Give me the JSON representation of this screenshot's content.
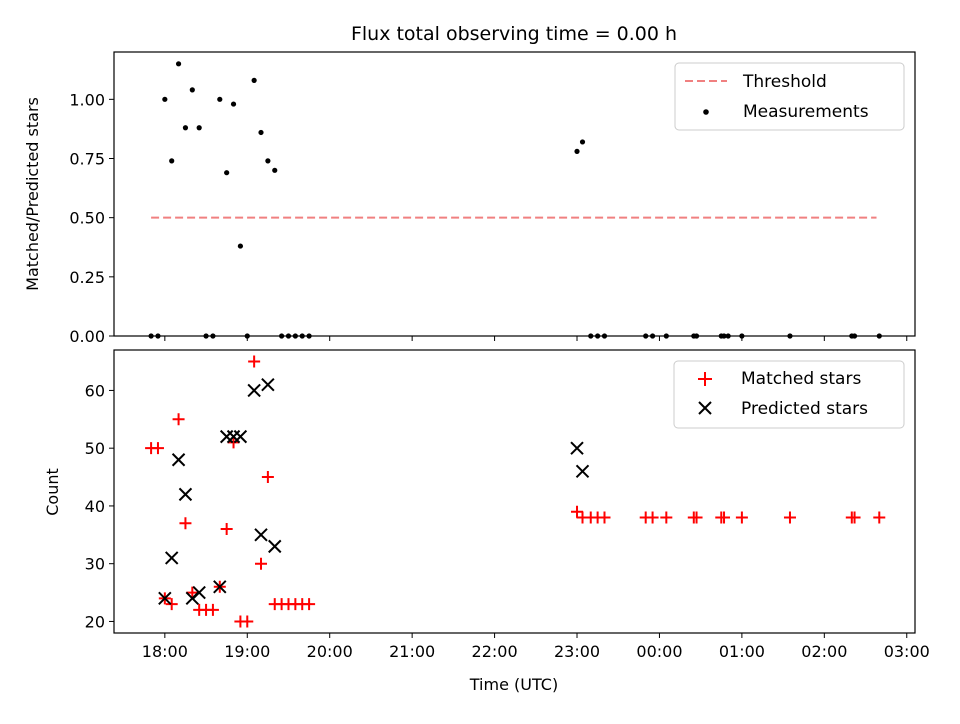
{
  "chart_data": [
    {
      "type": "scatter",
      "title": "Flux total observing time = 0.00 h",
      "xlabel": "",
      "ylabel": "Matched/Predicted stars",
      "xlim": [
        "17:23",
        "03:06"
      ],
      "ylim": [
        0,
        1.2
      ],
      "yticks": [
        "0.00",
        "0.25",
        "0.50",
        "0.75",
        "1.00"
      ],
      "legend": {
        "placement": "top-right",
        "entries": [
          "Threshold",
          "Measurements"
        ]
      },
      "threshold": {
        "name": "Threshold",
        "value": 0.5,
        "x_start": "17:50",
        "x_end": "02:38",
        "color": "#f08080",
        "style": "dashed"
      },
      "series": [
        {
          "name": "Measurements",
          "color": "#000000",
          "marker": "dot",
          "points": [
            [
              "17:50",
              0.0
            ],
            [
              "17:55",
              0.0
            ],
            [
              "18:00",
              1.0
            ],
            [
              "18:05",
              0.74
            ],
            [
              "18:10",
              1.15
            ],
            [
              "18:15",
              0.88
            ],
            [
              "18:20",
              1.04
            ],
            [
              "18:25",
              0.88
            ],
            [
              "18:30",
              0.0
            ],
            [
              "18:35",
              0.0
            ],
            [
              "18:40",
              1.0
            ],
            [
              "18:45",
              0.69
            ],
            [
              "18:50",
              0.98
            ],
            [
              "18:55",
              0.38
            ],
            [
              "19:00",
              0.0
            ],
            [
              "19:05",
              1.08
            ],
            [
              "19:10",
              0.86
            ],
            [
              "19:15",
              0.74
            ],
            [
              "19:20",
              0.7
            ],
            [
              "19:25",
              0.0
            ],
            [
              "19:30",
              0.0
            ],
            [
              "19:35",
              0.0
            ],
            [
              "19:40",
              0.0
            ],
            [
              "19:45",
              0.0
            ],
            [
              "23:00",
              0.78
            ],
            [
              "23:04",
              0.82
            ],
            [
              "23:10",
              0.0
            ],
            [
              "23:15",
              0.0
            ],
            [
              "23:20",
              0.0
            ],
            [
              "23:50",
              0.0
            ],
            [
              "23:55",
              0.0
            ],
            [
              "00:05",
              0.0
            ],
            [
              "00:25",
              0.0
            ],
            [
              "00:27",
              0.0
            ],
            [
              "00:45",
              0.0
            ],
            [
              "00:47",
              0.0
            ],
            [
              "00:50",
              0.0
            ],
            [
              "01:00",
              0.0
            ],
            [
              "01:35",
              0.0
            ],
            [
              "02:20",
              0.0
            ],
            [
              "02:22",
              0.0
            ],
            [
              "02:40",
              0.0
            ]
          ]
        }
      ]
    },
    {
      "type": "scatter",
      "title": "",
      "xlabel": "Time (UTC)",
      "ylabel": "Count",
      "xlim": [
        "17:23",
        "03:06"
      ],
      "ylim": [
        18,
        67
      ],
      "xticks": [
        "18:00",
        "19:00",
        "20:00",
        "21:00",
        "22:00",
        "23:00",
        "00:00",
        "01:00",
        "02:00",
        "03:00"
      ],
      "yticks": [
        "20",
        "30",
        "40",
        "50",
        "60"
      ],
      "legend": {
        "placement": "top-right",
        "entries": [
          "Matched stars",
          "Predicted stars"
        ]
      },
      "series": [
        {
          "name": "Matched stars",
          "color": "#ff0000",
          "marker": "plus",
          "points": [
            [
              "17:50",
              50
            ],
            [
              "17:55",
              50
            ],
            [
              "18:00",
              24
            ],
            [
              "18:05",
              23
            ],
            [
              "18:10",
              55
            ],
            [
              "18:15",
              37
            ],
            [
              "18:20",
              25
            ],
            [
              "18:25",
              22
            ],
            [
              "18:30",
              22
            ],
            [
              "18:35",
              22
            ],
            [
              "18:40",
              26
            ],
            [
              "18:45",
              36
            ],
            [
              "18:50",
              51
            ],
            [
              "18:55",
              20
            ],
            [
              "19:00",
              20
            ],
            [
              "19:05",
              65
            ],
            [
              "19:10",
              30
            ],
            [
              "19:15",
              45
            ],
            [
              "19:20",
              23
            ],
            [
              "19:25",
              23
            ],
            [
              "19:30",
              23
            ],
            [
              "19:35",
              23
            ],
            [
              "19:40",
              23
            ],
            [
              "19:45",
              23
            ],
            [
              "23:00",
              39
            ],
            [
              "23:04",
              38
            ],
            [
              "23:10",
              38
            ],
            [
              "23:15",
              38
            ],
            [
              "23:20",
              38
            ],
            [
              "23:50",
              38
            ],
            [
              "23:55",
              38
            ],
            [
              "00:05",
              38
            ],
            [
              "00:25",
              38
            ],
            [
              "00:27",
              38
            ],
            [
              "00:45",
              38
            ],
            [
              "00:47",
              38
            ],
            [
              "01:00",
              38
            ],
            [
              "01:35",
              38
            ],
            [
              "02:20",
              38
            ],
            [
              "02:22",
              38
            ],
            [
              "02:40",
              38
            ]
          ]
        },
        {
          "name": "Predicted stars",
          "color": "#000000",
          "marker": "x",
          "points": [
            [
              "18:00",
              24
            ],
            [
              "18:05",
              31
            ],
            [
              "18:10",
              48
            ],
            [
              "18:15",
              42
            ],
            [
              "18:20",
              24
            ],
            [
              "18:25",
              25
            ],
            [
              "18:40",
              26
            ],
            [
              "18:45",
              52
            ],
            [
              "18:50",
              52
            ],
            [
              "18:55",
              52
            ],
            [
              "19:05",
              60
            ],
            [
              "19:10",
              35
            ],
            [
              "19:15",
              61
            ],
            [
              "19:20",
              33
            ],
            [
              "23:00",
              50
            ],
            [
              "23:04",
              46
            ]
          ]
        }
      ]
    }
  ]
}
